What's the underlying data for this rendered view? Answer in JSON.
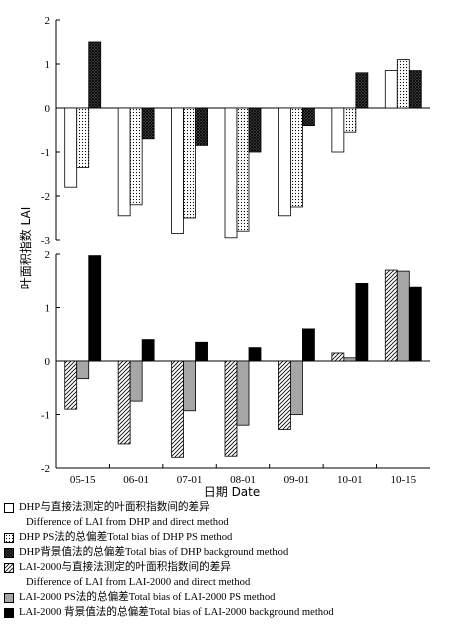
{
  "chart_data": [
    {
      "type": "bar",
      "panel": "top",
      "categories": [
        "05-15",
        "06-01",
        "07-01",
        "08-01",
        "09-01",
        "10-01",
        "10-15"
      ],
      "ylim": [
        -3,
        2
      ],
      "yticks": [
        -3,
        -2,
        -1,
        0,
        1,
        2
      ],
      "series": [
        {
          "name": "DHP与直接法测定的叶面积指数间的差异",
          "pattern": "white",
          "values": [
            -1.8,
            -2.45,
            -2.85,
            -2.95,
            -2.45,
            -1.0,
            0.85
          ]
        },
        {
          "name": "DHP PS法的总偏差Total bias of DHP PS method",
          "pattern": "dots",
          "values": [
            -1.35,
            -2.2,
            -2.5,
            -2.8,
            -2.25,
            -0.55,
            1.1
          ]
        },
        {
          "name": "DHP背景值法的总偏差Total bias of DHP background method",
          "pattern": "crosshatch",
          "values": [
            1.5,
            -0.7,
            -0.85,
            -1.0,
            -0.4,
            0.8,
            0.85
          ]
        }
      ]
    },
    {
      "type": "bar",
      "panel": "bottom",
      "categories": [
        "05-15",
        "06-01",
        "07-01",
        "08-01",
        "09-01",
        "10-01",
        "10-15"
      ],
      "ylim": [
        -2,
        2
      ],
      "yticks": [
        -2,
        -1,
        0,
        1,
        2
      ],
      "series": [
        {
          "name": "LAI-2000与直接法测定的叶面积指数间的差异",
          "pattern": "diagonal",
          "values": [
            -0.9,
            -1.55,
            -1.8,
            -1.78,
            -1.28,
            0.15,
            1.7
          ]
        },
        {
          "name": "LAI-2000 PS法的总偏差Total bias of LAI-2000 PS method",
          "pattern": "gray",
          "values": [
            -0.33,
            -0.75,
            -0.93,
            -1.2,
            -1.0,
            0.06,
            1.68
          ]
        },
        {
          "name": "LAI-2000 背景值法的总偏差Total bias of LAI-2000 background method",
          "pattern": "black",
          "values": [
            1.97,
            0.4,
            0.35,
            0.25,
            0.6,
            1.45,
            1.38
          ]
        }
      ]
    }
  ],
  "ylabel": "叶面积指数 LAI",
  "xlabel": "日期 Date",
  "legend": [
    {
      "pattern": "white",
      "text": "DHP与直接法测定的叶面积指数间的差异"
    },
    {
      "pattern": "none",
      "text": "Difference of LAI from DHP and direct method"
    },
    {
      "pattern": "dots",
      "text": "DHP PS法的总偏差Total bias of DHP PS method"
    },
    {
      "pattern": "crosshatch",
      "text": "DHP背景值法的总偏差Total bias of DHP background method"
    },
    {
      "pattern": "diagonal",
      "text": "LAI-2000与直接法测定的叶面积指数间的差异"
    },
    {
      "pattern": "none",
      "text": "Difference of LAI from LAI-2000 and direct method"
    },
    {
      "pattern": "gray",
      "text": "LAI-2000 PS法的总偏差Total bias of LAI-2000 PS method"
    },
    {
      "pattern": "black",
      "text": "LAI-2000 背景值法的总偏差Total bias of LAI-2000 background method"
    }
  ]
}
